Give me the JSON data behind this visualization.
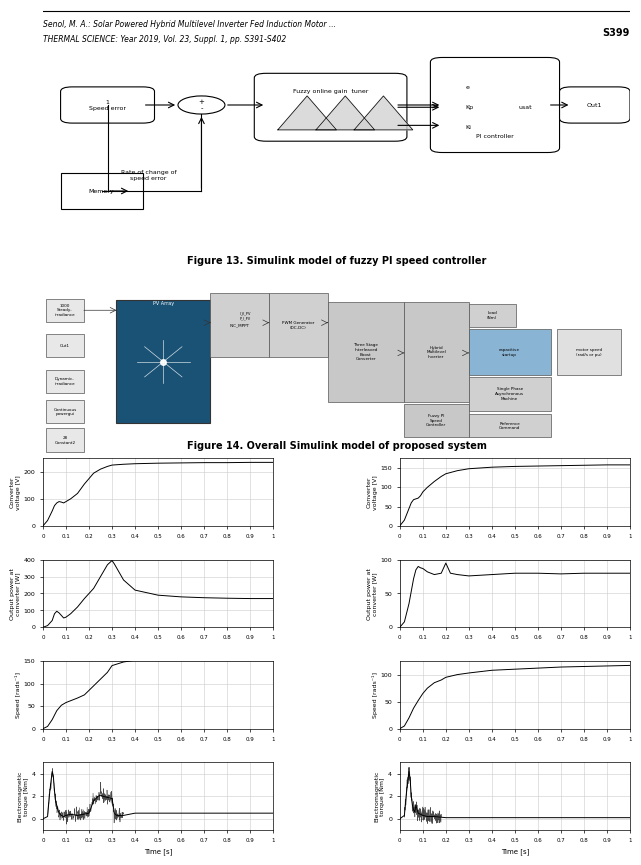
{
  "header_line1": "Senol, M. A.: Solar Powered Hybrid Multilevel Inverter Fed Induction Motor ...",
  "header_line2": "THERMAL SCIENCE: Year 2019, Vol. 23, Suppl. 1, pp. S391-S402",
  "header_right": "S399",
  "fig13_caption": "Figure 13. Simulink model of fuzzy PI speed controller",
  "fig14_caption": "Figure 14. Overall Simulink model of proposed system",
  "bg_color": "#ffffff",
  "plot_bg": "#ffffff",
  "grid_color": "#cccccc",
  "line_color": "#000000",
  "left_plots": {
    "voltage": {
      "ylabel": "Converter\nvoltage [V]",
      "ylim": [
        0,
        250
      ],
      "yticks": [
        0,
        100,
        200
      ],
      "data_x": [
        0,
        0.02,
        0.04,
        0.05,
        0.06,
        0.07,
        0.08,
        0.09,
        0.1,
        0.12,
        0.15,
        0.18,
        0.2,
        0.22,
        0.25,
        0.28,
        0.3,
        0.35,
        0.4,
        0.5,
        0.6,
        0.7,
        0.8,
        0.9,
        1.0
      ],
      "data_y": [
        0,
        20,
        55,
        75,
        85,
        90,
        88,
        85,
        90,
        100,
        120,
        155,
        175,
        195,
        210,
        220,
        225,
        228,
        230,
        232,
        233,
        234,
        234,
        235,
        235
      ]
    },
    "power": {
      "ylabel": "Output power at\nconverter [W]",
      "ylim": [
        0,
        400
      ],
      "yticks": [
        0,
        100,
        200,
        300,
        400
      ],
      "data_x": [
        0,
        0.02,
        0.04,
        0.05,
        0.06,
        0.07,
        0.08,
        0.09,
        0.1,
        0.12,
        0.15,
        0.18,
        0.2,
        0.22,
        0.25,
        0.28,
        0.3,
        0.31,
        0.35,
        0.4,
        0.5,
        0.6,
        0.7,
        0.8,
        0.9,
        1.0
      ],
      "data_y": [
        0,
        10,
        40,
        80,
        95,
        85,
        70,
        55,
        60,
        80,
        120,
        170,
        200,
        230,
        300,
        370,
        395,
        375,
        280,
        220,
        190,
        180,
        175,
        172,
        170,
        170
      ]
    },
    "speed": {
      "ylabel": "Speed [rads⁻¹]",
      "ylim": [
        0,
        150
      ],
      "yticks": [
        0,
        50,
        100,
        150
      ],
      "data_x": [
        0,
        0.02,
        0.04,
        0.06,
        0.08,
        0.1,
        0.12,
        0.15,
        0.18,
        0.2,
        0.22,
        0.25,
        0.28,
        0.3,
        0.35,
        0.4,
        0.5,
        0.6,
        0.7,
        0.8,
        0.9,
        1.0
      ],
      "data_y": [
        0,
        5,
        20,
        40,
        52,
        58,
        62,
        68,
        75,
        85,
        95,
        110,
        125,
        140,
        148,
        152,
        154,
        155,
        156,
        157,
        157,
        158
      ]
    },
    "torque": {
      "ylabel": "Electromagnetic\ntorque [Nm]",
      "ylim": [
        -1,
        5
      ],
      "yticks": [
        0,
        2,
        4
      ],
      "data_x": [
        0,
        0.02,
        0.03,
        0.04,
        0.045,
        0.05,
        0.055,
        0.06,
        0.065,
        0.07,
        0.08,
        0.09,
        0.1,
        0.12,
        0.15,
        0.2,
        0.22,
        0.24,
        0.25,
        0.26,
        0.28,
        0.3,
        0.31,
        0.32,
        0.35,
        0.4,
        0.5,
        0.6,
        0.7,
        0.8,
        0.9,
        1.0
      ],
      "data_y": [
        0,
        0.2,
        2.5,
        4.2,
        3.8,
        2.5,
        1.5,
        1.2,
        0.8,
        0.5,
        0.3,
        0.2,
        0.3,
        0.4,
        0.3,
        0.5,
        1.6,
        2.0,
        2.1,
        2.0,
        1.9,
        1.8,
        0.5,
        0.3,
        0.3,
        0.5,
        0.5,
        0.5,
        0.5,
        0.5,
        0.5,
        0.5
      ],
      "xlabel": "Time [s]"
    }
  },
  "right_plots": {
    "voltage": {
      "ylabel": "Converter\nvoltage [V]",
      "ylim": [
        0,
        175
      ],
      "yticks": [
        0,
        50,
        100,
        150
      ],
      "data_x": [
        0,
        0.02,
        0.04,
        0.05,
        0.06,
        0.07,
        0.08,
        0.09,
        0.1,
        0.12,
        0.15,
        0.18,
        0.2,
        0.25,
        0.3,
        0.4,
        0.5,
        0.6,
        0.7,
        0.8,
        0.9,
        1.0
      ],
      "data_y": [
        0,
        15,
        45,
        60,
        68,
        70,
        72,
        78,
        88,
        100,
        115,
        128,
        135,
        143,
        148,
        152,
        154,
        155,
        156,
        157,
        158,
        158
      ]
    },
    "power": {
      "ylabel": "Output power at\nconverter [W]",
      "ylim": [
        0,
        100
      ],
      "yticks": [
        0,
        50,
        100
      ],
      "data_x": [
        0,
        0.02,
        0.04,
        0.06,
        0.07,
        0.08,
        0.09,
        0.1,
        0.12,
        0.15,
        0.18,
        0.2,
        0.22,
        0.25,
        0.3,
        0.4,
        0.5,
        0.6,
        0.7,
        0.8,
        0.9,
        1.0
      ],
      "data_y": [
        0,
        8,
        35,
        72,
        85,
        90,
        88,
        87,
        82,
        78,
        80,
        95,
        80,
        78,
        76,
        78,
        80,
        80,
        79,
        80,
        80,
        80
      ]
    },
    "speed": {
      "ylabel": "Speed [rads⁻¹]",
      "ylim": [
        0,
        125
      ],
      "yticks": [
        0,
        50,
        100
      ],
      "data_x": [
        0,
        0.02,
        0.04,
        0.06,
        0.08,
        0.1,
        0.12,
        0.15,
        0.18,
        0.2,
        0.25,
        0.3,
        0.4,
        0.5,
        0.6,
        0.7,
        0.8,
        0.9,
        1.0
      ],
      "data_y": [
        0,
        5,
        20,
        38,
        52,
        65,
        75,
        85,
        90,
        95,
        100,
        103,
        108,
        110,
        112,
        114,
        115,
        116,
        117
      ]
    },
    "torque": {
      "ylabel": "Electromagnetic\ntorque [Nm]",
      "ylim": [
        -1,
        5
      ],
      "yticks": [
        0,
        2,
        4
      ],
      "data_x": [
        0,
        0.02,
        0.03,
        0.04,
        0.045,
        0.05,
        0.055,
        0.06,
        0.065,
        0.07,
        0.08,
        0.1,
        0.12,
        0.15,
        0.2,
        0.25,
        0.3,
        0.4,
        0.5,
        0.6,
        0.7,
        0.8,
        0.9,
        1.0
      ],
      "data_y": [
        0,
        0.3,
        2.5,
        4.2,
        3.5,
        2.0,
        1.2,
        0.8,
        0.6,
        1.2,
        0.5,
        0.3,
        0.2,
        0.2,
        0.1,
        0.1,
        0.1,
        0.1,
        0.1,
        0.1,
        0.1,
        0.1,
        0.1,
        0.1
      ],
      "xlabel": "Time [s]"
    }
  },
  "xticks": [
    0,
    0.1,
    0.2,
    0.3,
    0.4,
    0.5,
    0.6,
    0.7,
    0.8,
    0.9,
    1
  ],
  "xlim": [
    0,
    1.0
  ]
}
